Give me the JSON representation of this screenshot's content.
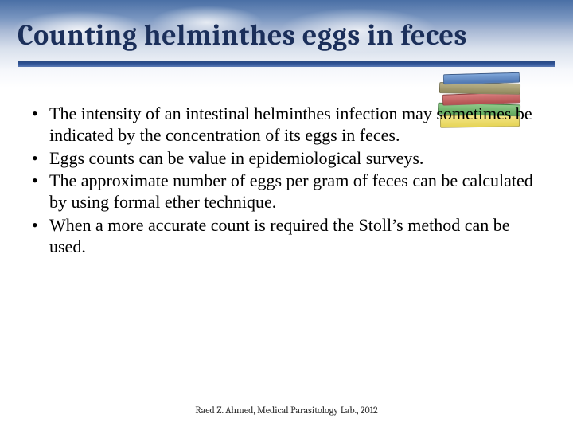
{
  "title": "Counting helminthes eggs in feces",
  "bullets": [
    "The intensity of an intestinal helminthes infection may sometimes be indicated by the concentration of its eggs in feces.",
    "Eggs counts can be value in epidemiological surveys.",
    "The approximate number of eggs per gram of feces can be calculated by using formal ether technique.",
    "When a more accurate count is required the Stoll’s method can be used."
  ],
  "footer": "Raed Z. Ahmed, Medical Parasitology Lab., 2012",
  "style": {
    "title_color": "#1b2f5a",
    "title_fontsize": 36,
    "body_fontsize": 22,
    "divider_gradient": [
      "#26447b",
      "#2f5396",
      "#5c7bb5"
    ],
    "header_gradient": [
      "#4a6fa5",
      "#7794bf",
      "#a8b8d4",
      "#d8e0ec",
      "#f5f7fb",
      "#ffffff"
    ],
    "book_colors": [
      "#e6d456",
      "#5fa85a",
      "#b24f4f",
      "#8f875c",
      "#4f77b2"
    ],
    "footer_fontsize": 12,
    "footer_color": "#2a2a2a",
    "background_color": "#ffffff"
  }
}
